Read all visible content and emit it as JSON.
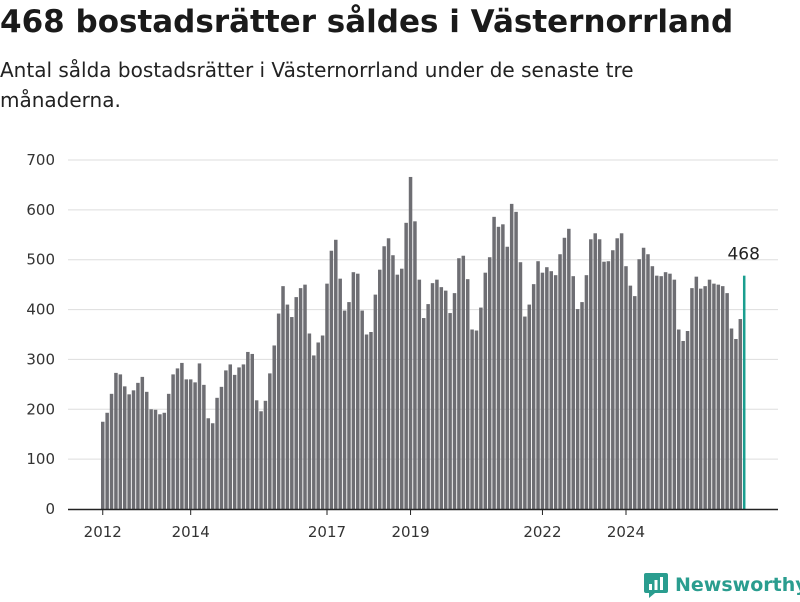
{
  "header": {
    "title": "468 bostadsrätter såldes i Västernorrland",
    "subtitle": "Antal sålda bostadsrätter i Västernorrland under de senaste tre månaderna."
  },
  "brand": {
    "name": "Newsworthy",
    "icon": "newsworthy-logo-icon",
    "color": "#2a9d8f"
  },
  "colors": {
    "bar": "#6e6e73",
    "highlight": "#1a9e8f",
    "grid": "#dddddd",
    "axis": "#222222"
  },
  "chart_data": {
    "type": "bar",
    "title": "468 bostadsrätter såldes i Västernorrland",
    "subtitle": "Antal sålda bostadsrätter i Västernorrland under de senaste tre månaderna.",
    "xlabel": "",
    "ylabel": "",
    "ylim": [
      0,
      700
    ],
    "yticks": [
      0,
      100,
      200,
      300,
      400,
      500,
      600,
      700
    ],
    "grid": true,
    "x_tick_labels": [
      "2012",
      "2014",
      "2017",
      "2019",
      "2022",
      "2024"
    ],
    "x_tick_positions": [
      0,
      20,
      51,
      70,
      100,
      119
    ],
    "series": [
      {
        "values": [
          175,
          193,
          231,
          273,
          270,
          246,
          230,
          238,
          253,
          265,
          235,
          200,
          199,
          190,
          193,
          231,
          270,
          282,
          293,
          260,
          260,
          254,
          292,
          249,
          182,
          172,
          223,
          245,
          278,
          290,
          269,
          284,
          290,
          315,
          311,
          218,
          196,
          217,
          272,
          328,
          392,
          447,
          410,
          385,
          425,
          443,
          450,
          352,
          308,
          334,
          348,
          452,
          518,
          540,
          462,
          398,
          415,
          475,
          472,
          398,
          350,
          355,
          430,
          480,
          527,
          543,
          509,
          470,
          482,
          574,
          666,
          577,
          460,
          383,
          411,
          453,
          460,
          445,
          438,
          393,
          433,
          503,
          508,
          461,
          360,
          358,
          404,
          474,
          505,
          586,
          566,
          571,
          526,
          612,
          596,
          495,
          386,
          410,
          451,
          497,
          474,
          485,
          477,
          469,
          511,
          544,
          562,
          467,
          401,
          415,
          469,
          541,
          553,
          541,
          496,
          497,
          519,
          543,
          553,
          487,
          448,
          427,
          501,
          524,
          511,
          487,
          468,
          467,
          475,
          472,
          460,
          360,
          337,
          357,
          443,
          466,
          442,
          447,
          460,
          452,
          450,
          447,
          433,
          362,
          341,
          381,
          468
        ]
      }
    ],
    "annotations": [
      {
        "index": 146,
        "value": 468,
        "label": "468"
      }
    ]
  }
}
